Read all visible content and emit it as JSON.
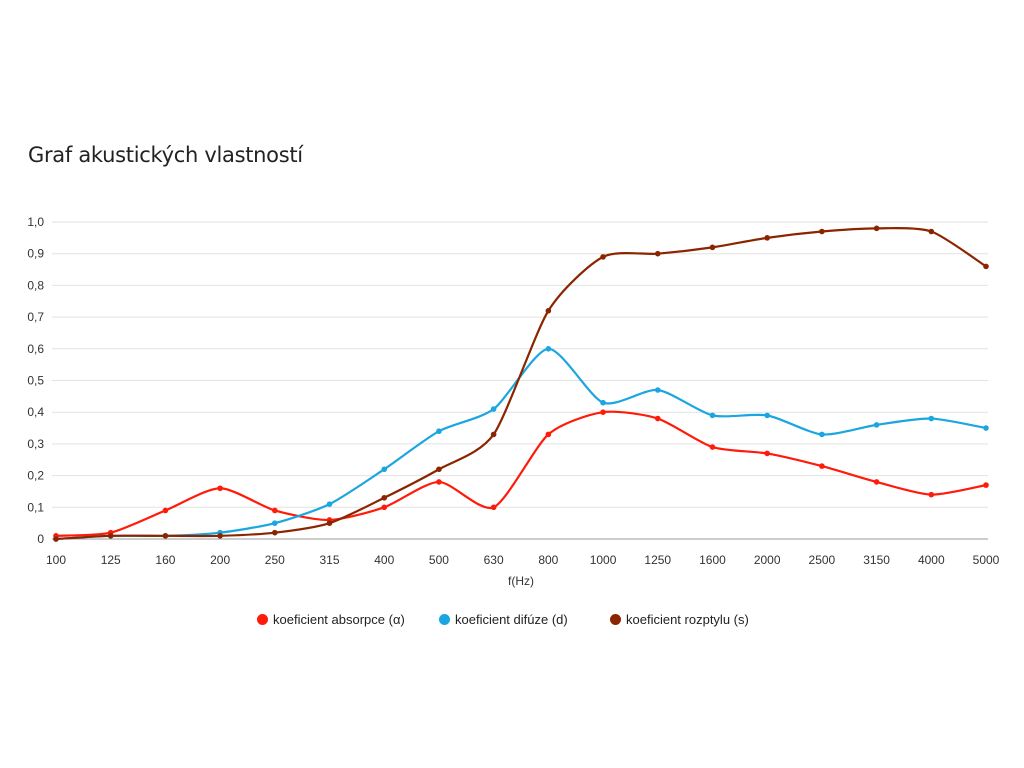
{
  "chart_data": {
    "type": "line",
    "title": "Graf akustických vlastností",
    "xlabel": "f(Hz)",
    "ylabel": "",
    "ylim": [
      0,
      1.0
    ],
    "yticks": [
      "0",
      "0,1",
      "0,2",
      "0,3",
      "0,4",
      "0,5",
      "0,6",
      "0,7",
      "0,8",
      "0,9",
      "1,0"
    ],
    "categories": [
      "100",
      "125",
      "160",
      "200",
      "250",
      "315",
      "400",
      "500",
      "630",
      "800",
      "1000",
      "1250",
      "1600",
      "2000",
      "2500",
      "3150",
      "4000",
      "5000"
    ],
    "grid": true,
    "legend_position": "bottom",
    "series": [
      {
        "name": "koeficient absorpce (α)",
        "color": "#ff1a0a",
        "values": [
          0.01,
          0.02,
          0.09,
          0.16,
          0.09,
          0.06,
          0.1,
          0.18,
          0.1,
          0.33,
          0.4,
          0.38,
          0.29,
          0.27,
          0.23,
          0.18,
          0.14,
          0.17
        ]
      },
      {
        "name": "koeficient difúze (d)",
        "color": "#1aa6e0",
        "values": [
          0.0,
          0.01,
          0.01,
          0.02,
          0.05,
          0.11,
          0.22,
          0.34,
          0.41,
          0.6,
          0.43,
          0.47,
          0.39,
          0.39,
          0.33,
          0.36,
          0.38,
          0.35
        ]
      },
      {
        "name": "koeficient rozptylu (s)",
        "color": "#8b2500",
        "values": [
          0.0,
          0.01,
          0.01,
          0.01,
          0.02,
          0.05,
          0.13,
          0.22,
          0.33,
          0.72,
          0.89,
          0.9,
          0.92,
          0.95,
          0.97,
          0.98,
          0.97,
          0.86
        ]
      }
    ]
  }
}
